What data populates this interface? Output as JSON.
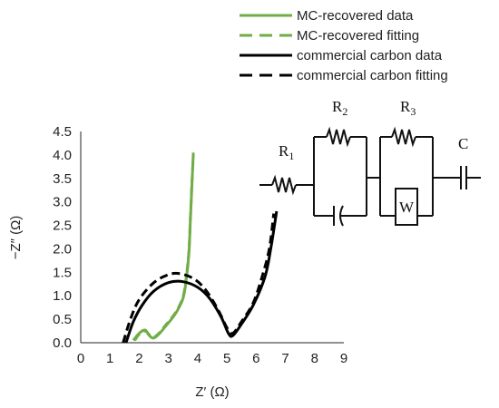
{
  "chart_data": {
    "type": "line",
    "xlabel": "Z′ (Ω)",
    "ylabel": "−Z″ (Ω)",
    "xlim": [
      0,
      9
    ],
    "ylim": [
      0,
      4.5
    ],
    "x_ticks": [
      "0",
      "1",
      "2",
      "3",
      "4",
      "5",
      "6",
      "7",
      "8",
      "9"
    ],
    "y_ticks": [
      "0.0",
      "0.5",
      "1.0",
      "1.5",
      "2.0",
      "2.5",
      "3.0",
      "3.5",
      "4.0",
      "4.5"
    ],
    "grid": false,
    "legend_position": "top-right",
    "series": [
      {
        "name": "MC-recovered data",
        "color": "#70ad47",
        "style": "solid",
        "x": [
          1.8,
          2.0,
          2.2,
          2.35,
          2.5,
          2.7,
          2.9,
          3.1,
          3.3,
          3.5,
          3.6,
          3.7,
          3.75,
          3.8,
          3.85
        ],
        "y": [
          0.05,
          0.2,
          0.27,
          0.15,
          0.1,
          0.2,
          0.35,
          0.5,
          0.68,
          0.95,
          1.3,
          1.9,
          2.6,
          3.3,
          4.05
        ]
      },
      {
        "name": "MC-recovered fitting",
        "color": "#70ad47",
        "style": "dashed",
        "x": [
          1.85,
          2.0,
          2.2,
          2.35,
          2.5,
          2.7,
          2.9,
          3.1,
          3.3,
          3.5,
          3.6,
          3.7,
          3.75,
          3.8,
          3.85
        ],
        "y": [
          0.05,
          0.18,
          0.25,
          0.17,
          0.12,
          0.22,
          0.37,
          0.52,
          0.7,
          0.98,
          1.35,
          1.95,
          2.65,
          3.35,
          4.0
        ]
      },
      {
        "name": "commercial carbon data",
        "color": "#000000",
        "style": "solid",
        "x": [
          1.55,
          1.8,
          2.1,
          2.5,
          3.0,
          3.5,
          4.0,
          4.4,
          4.8,
          5.05,
          5.2,
          5.5,
          5.9,
          6.3,
          6.5,
          6.7
        ],
        "y": [
          0.0,
          0.45,
          0.8,
          1.1,
          1.28,
          1.3,
          1.18,
          0.95,
          0.55,
          0.2,
          0.15,
          0.4,
          0.8,
          1.4,
          2.0,
          2.8
        ]
      },
      {
        "name": "commercial carbon fitting",
        "color": "#000000",
        "style": "dashed",
        "x": [
          1.45,
          1.7,
          2.0,
          2.5,
          3.0,
          3.4,
          3.9,
          4.3,
          4.7,
          5.0,
          5.2,
          5.5,
          5.9,
          6.2,
          6.45,
          6.6
        ],
        "y": [
          0.0,
          0.5,
          0.92,
          1.28,
          1.45,
          1.47,
          1.35,
          1.1,
          0.7,
          0.32,
          0.2,
          0.45,
          0.85,
          1.4,
          2.0,
          2.75
        ]
      }
    ]
  },
  "circuit": {
    "r1": "R",
    "r1_sub": "1",
    "r2": "R",
    "r2_sub": "2",
    "r3": "R",
    "r3_sub": "3",
    "w": "W",
    "c": "C"
  }
}
